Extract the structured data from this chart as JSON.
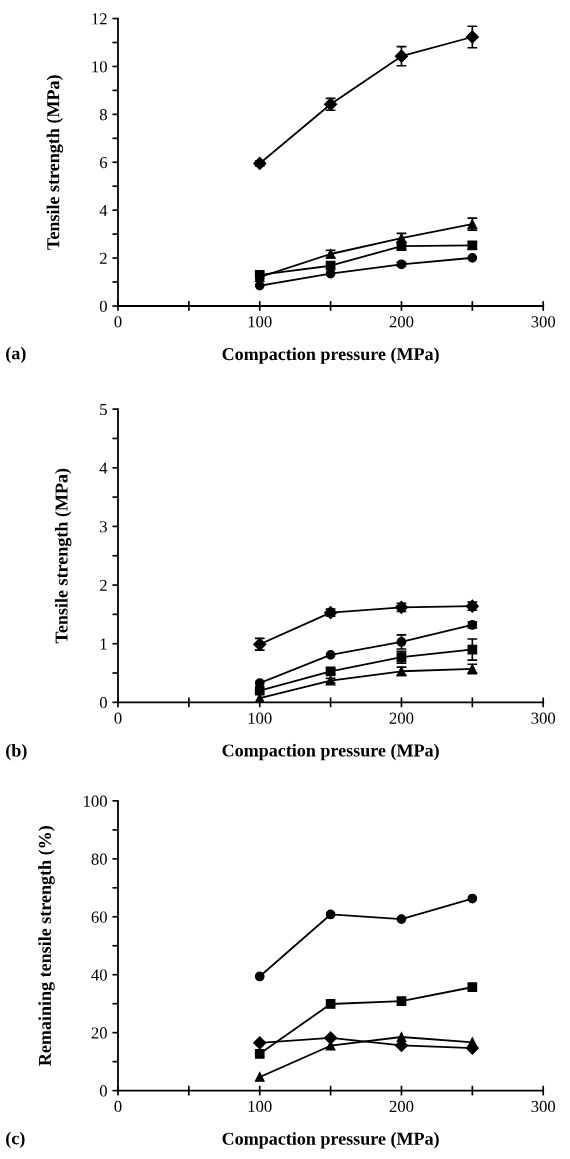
{
  "chart_data": [
    {
      "type": "line",
      "xlabel": "Compaction pressure (MPa)",
      "ylabel": "Tensile strength (MPa)",
      "annotations": [
        "(a)"
      ],
      "x": [
        100,
        150,
        200,
        250
      ],
      "xlim": [
        0,
        300
      ],
      "ylim": [
        0,
        12
      ],
      "xticks": [
        0,
        {
          "value": 50,
          "label": null
        },
        100,
        {
          "value": 150,
          "label": null
        },
        200,
        {
          "value": 250,
          "label": null
        },
        300
      ],
      "yticks": [
        0,
        {
          "value": 1,
          "label": null
        },
        2,
        {
          "value": 3,
          "label": null
        },
        4,
        {
          "value": 5,
          "label": null
        },
        6,
        {
          "value": 7,
          "label": null
        },
        8,
        {
          "value": 9,
          "label": null
        },
        10,
        {
          "value": 11,
          "label": null
        },
        12
      ],
      "grid": false,
      "line_style": "solid",
      "series": [
        {
          "color": "#000000",
          "marker": "diamond",
          "values": [
            5.95,
            8.42,
            10.43,
            11.23
          ],
          "errors": [
            0.1,
            0.25,
            0.4,
            0.45
          ]
        },
        {
          "color": "#000000",
          "marker": "triangle",
          "values": [
            1.2,
            2.17,
            2.83,
            3.42
          ],
          "errors": [
            null,
            0.15,
            0.2,
            0.25
          ]
        },
        {
          "color": "#000000",
          "marker": "square",
          "values": [
            1.3,
            1.68,
            2.5,
            2.53
          ],
          "errors": [
            null,
            null,
            0.15,
            0.15
          ]
        },
        {
          "color": "#000000",
          "marker": "circle",
          "values": [
            0.85,
            1.35,
            1.74,
            2.01
          ],
          "errors": [
            null,
            null,
            0.08,
            null
          ]
        }
      ]
    },
    {
      "type": "line",
      "xlabel": "Compaction pressure (MPa)",
      "ylabel": "Tensile strength (MPa)",
      "annotations": [
        "(b)"
      ],
      "x": [
        100,
        150,
        200,
        250
      ],
      "xlim": [
        0,
        300
      ],
      "ylim": [
        0,
        5
      ],
      "xticks": [
        0,
        {
          "value": 50,
          "label": null
        },
        100,
        {
          "value": 150,
          "label": null
        },
        200,
        {
          "value": 250,
          "label": null
        },
        300
      ],
      "yticks": [
        0,
        {
          "value": 0.5,
          "label": null
        },
        1,
        {
          "value": 1.5,
          "label": null
        },
        2,
        {
          "value": 2.5,
          "label": null
        },
        3,
        {
          "value": 3.5,
          "label": null
        },
        4,
        {
          "value": 4.5,
          "label": null
        },
        5
      ],
      "grid": false,
      "line_style": "solid",
      "series": [
        {
          "color": "#000000",
          "marker": "diamond",
          "values": [
            0.99,
            1.53,
            1.62,
            1.64
          ],
          "errors": [
            0.1,
            0.06,
            0.07,
            0.07
          ]
        },
        {
          "color": "#000000",
          "marker": "circle",
          "values": [
            0.33,
            0.81,
            1.03,
            1.32
          ],
          "errors": [
            null,
            null,
            0.12,
            0.05
          ]
        },
        {
          "color": "#000000",
          "marker": "square",
          "values": [
            0.2,
            0.53,
            0.77,
            0.9
          ],
          "errors": [
            null,
            0.05,
            0.1,
            0.18
          ]
        },
        {
          "color": "#000000",
          "marker": "triangle",
          "values": [
            0.07,
            0.37,
            0.53,
            0.57
          ],
          "errors": [
            null,
            0.04,
            0.07,
            0.08
          ]
        }
      ]
    },
    {
      "type": "line",
      "xlabel": "Compaction pressure (MPa)",
      "ylabel": "Remaining tensile strength (%)",
      "annotations": [
        "(c)"
      ],
      "x": [
        100,
        150,
        200,
        250
      ],
      "xlim": [
        0,
        300
      ],
      "ylim": [
        0,
        100
      ],
      "xticks": [
        0,
        {
          "value": 50,
          "label": null
        },
        100,
        {
          "value": 150,
          "label": null
        },
        200,
        {
          "value": 250,
          "label": null
        },
        300
      ],
      "yticks": [
        0,
        {
          "value": 10,
          "label": null
        },
        20,
        {
          "value": 30,
          "label": null
        },
        40,
        {
          "value": 50,
          "label": null
        },
        60,
        {
          "value": 70,
          "label": null
        },
        80,
        {
          "value": 90,
          "label": null
        },
        100
      ],
      "grid": false,
      "line_style": "solid",
      "series": [
        {
          "color": "#000000",
          "marker": "circle",
          "values": [
            39.4,
            60.8,
            59.2,
            66.3
          ]
        },
        {
          "color": "#000000",
          "marker": "square",
          "values": [
            12.7,
            29.9,
            30.9,
            35.7
          ]
        },
        {
          "color": "#000000",
          "marker": "diamond",
          "values": [
            16.5,
            18.2,
            15.6,
            14.7
          ]
        },
        {
          "color": "#000000",
          "marker": "triangle",
          "values": [
            4.7,
            15.5,
            18.5,
            16.7
          ]
        }
      ]
    }
  ]
}
